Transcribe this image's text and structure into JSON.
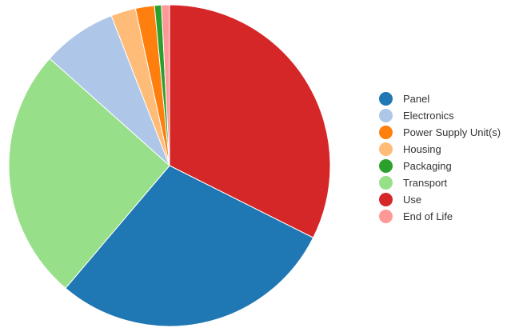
{
  "chart_data": {
    "type": "pie",
    "title": "",
    "legend_position": "right",
    "slices": [
      {
        "label": "Panel",
        "value": 28.8,
        "color": "#1f77b4"
      },
      {
        "label": "Electronics",
        "value": 7.5,
        "color": "#aec7e8"
      },
      {
        "label": "Power Supply Unit(s)",
        "value": 1.9,
        "color": "#ff7f0e"
      },
      {
        "label": "Housing",
        "value": 2.5,
        "color": "#ffbb78"
      },
      {
        "label": "Packaging",
        "value": 0.7,
        "color": "#2ca02c"
      },
      {
        "label": "Transport",
        "value": 25.4,
        "color": "#98df8a"
      },
      {
        "label": "Use",
        "value": 32.4,
        "color": "#d62728"
      },
      {
        "label": "End of Life",
        "value": 0.8,
        "color": "#ff9896"
      }
    ],
    "draw_order": [
      "Use",
      "Panel",
      "Transport",
      "Electronics",
      "Housing",
      "Power Supply Unit(s)",
      "Packaging",
      "End of Life"
    ]
  }
}
